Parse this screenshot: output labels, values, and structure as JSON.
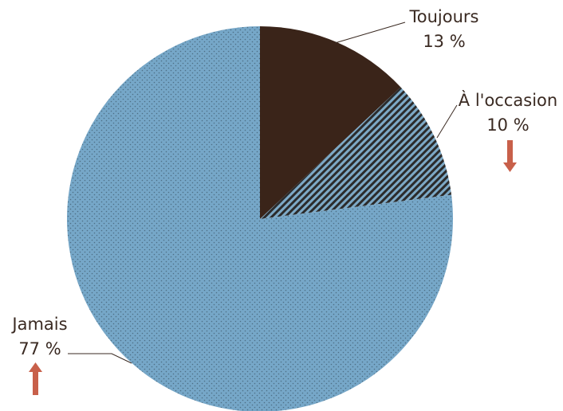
{
  "chart_data": {
    "type": "pie",
    "slices": [
      {
        "label": "Toujours",
        "value": 13,
        "value_label": "13 %",
        "color": "#3a2419",
        "pattern": "solid"
      },
      {
        "label": "À l'occasion",
        "value": 10,
        "value_label": "10 %",
        "color": "#333333",
        "pattern": "diagonal-stripes",
        "trend": "down"
      },
      {
        "label": "Jamais",
        "value": 77,
        "value_label": "77 %",
        "color": "#76a7c8",
        "pattern": "dotted",
        "trend": "up"
      }
    ],
    "start_angle": "12 o'clock",
    "direction": "clockwise",
    "legend": "none"
  },
  "colors": {
    "label_text": "#3a2a22",
    "trend_arrow": "#c8604a"
  }
}
